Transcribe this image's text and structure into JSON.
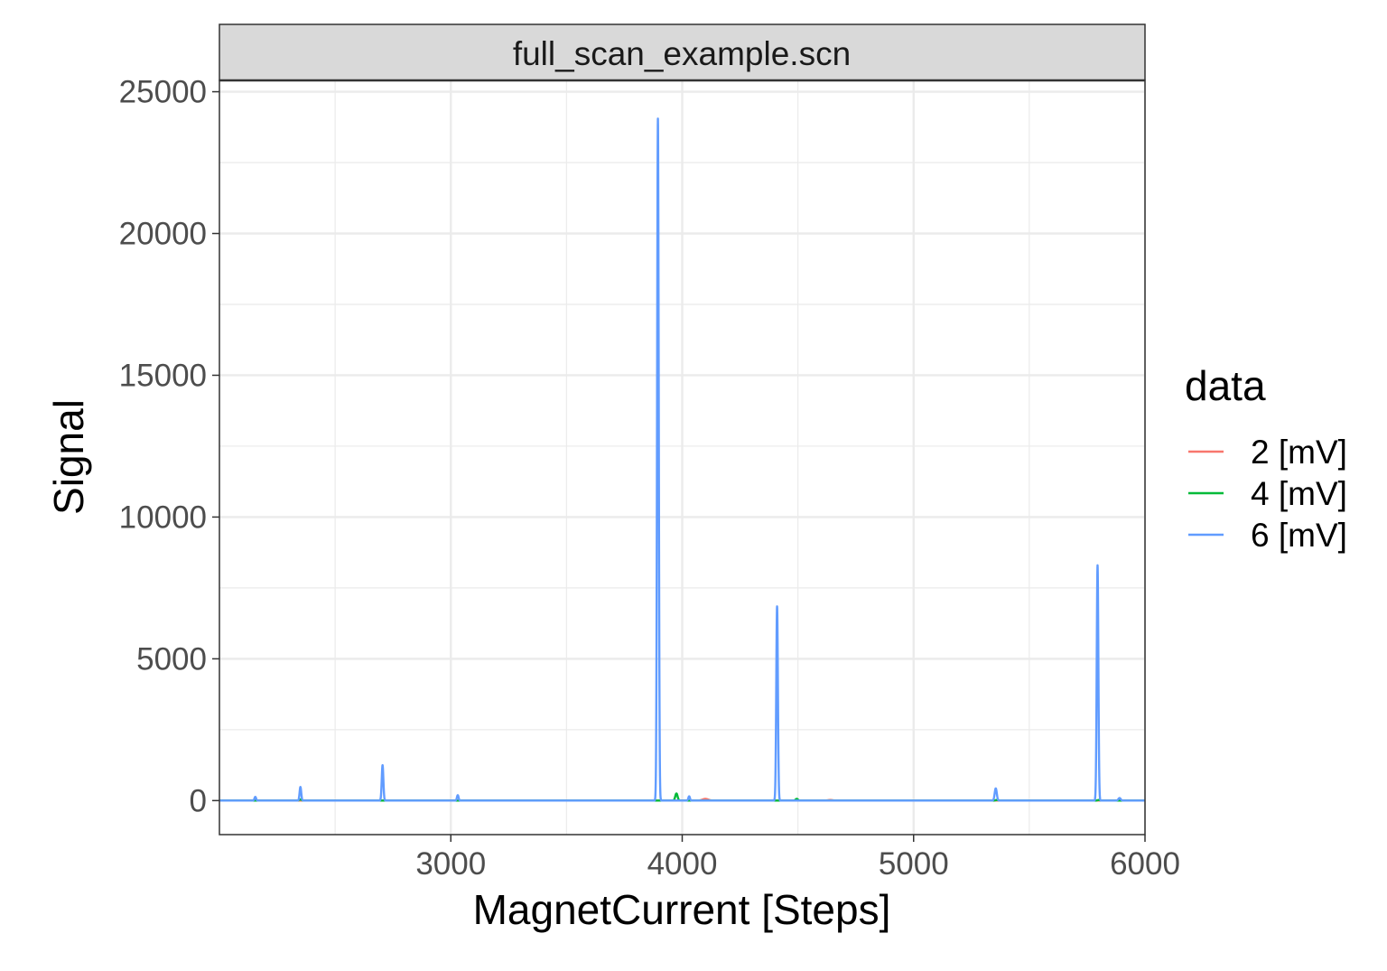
{
  "chart_data": {
    "type": "line",
    "facet_title": "full_scan_example.scn",
    "xlabel": "MagnetCurrent [Steps]",
    "ylabel": "Signal",
    "xlim": [
      2000,
      6000
    ],
    "ylim": [
      -1200,
      25400
    ],
    "x_ticks": [
      3000,
      4000,
      5000,
      6000
    ],
    "x_tick_labels": [
      "3000",
      "4000",
      "5000",
      "6000"
    ],
    "y_ticks": [
      0,
      5000,
      10000,
      15000,
      20000,
      25000
    ],
    "y_tick_labels": [
      "0",
      "5000",
      "10000",
      "15000",
      "20000",
      "25000"
    ],
    "grid": true,
    "legend": {
      "title": "data",
      "position": "right",
      "entries": [
        "2 [mV]",
        "4 [mV]",
        "6 [mV]"
      ]
    },
    "series": [
      {
        "name": "2 [mV]",
        "color": "#F8766D",
        "baseline": 0,
        "peaks": [
          {
            "x": 4100,
            "height": 60,
            "width": 12
          },
          {
            "x": 4640,
            "height": 20,
            "width": 10
          }
        ]
      },
      {
        "name": "4 [mV]",
        "color": "#00BA38",
        "baseline": 0,
        "peaks": [
          {
            "x": 3975,
            "height": 250,
            "width": 5
          },
          {
            "x": 4495,
            "height": 60,
            "width": 5
          },
          {
            "x": 2350,
            "height": 40,
            "width": 5
          },
          {
            "x": 5360,
            "height": 20,
            "width": 6
          },
          {
            "x": 5800,
            "height": 20,
            "width": 5
          }
        ]
      },
      {
        "name": "6 [mV]",
        "color": "#619CFF",
        "baseline": 0,
        "peaks": [
          {
            "x": 3895,
            "height": 24050,
            "width": 3.5
          },
          {
            "x": 4410,
            "height": 6850,
            "width": 3.5
          },
          {
            "x": 5795,
            "height": 8300,
            "width": 3.5
          },
          {
            "x": 2705,
            "height": 1250,
            "width": 3.5
          },
          {
            "x": 2350,
            "height": 480,
            "width": 3.5
          },
          {
            "x": 2155,
            "height": 130,
            "width": 3.5
          },
          {
            "x": 3030,
            "height": 190,
            "width": 3.5
          },
          {
            "x": 4030,
            "height": 150,
            "width": 3.5
          },
          {
            "x": 5355,
            "height": 430,
            "width": 4.5
          },
          {
            "x": 5890,
            "height": 90,
            "width": 5
          }
        ]
      }
    ]
  }
}
